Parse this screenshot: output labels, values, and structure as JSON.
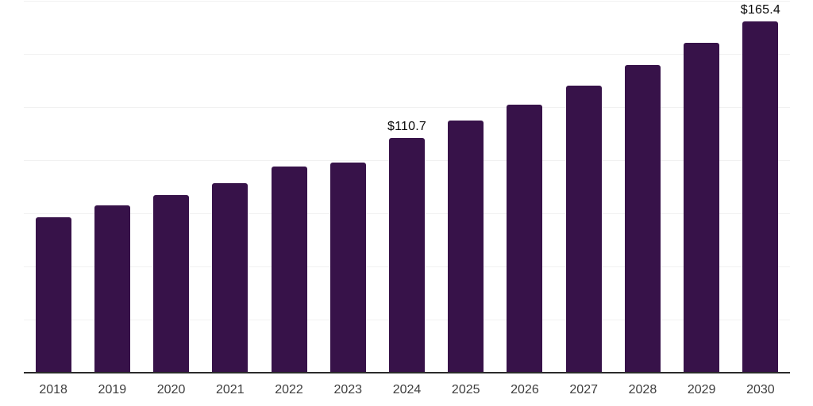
{
  "chart_data": {
    "type": "bar",
    "title": "",
    "xlabel": "",
    "ylabel": "",
    "categories": [
      "2018",
      "2019",
      "2020",
      "2021",
      "2022",
      "2023",
      "2024",
      "2025",
      "2026",
      "2027",
      "2028",
      "2029",
      "2030"
    ],
    "values": [
      73.2,
      78.7,
      83.6,
      89.2,
      97.1,
      99.0,
      110.7,
      118.7,
      126.2,
      135.2,
      144.9,
      155.3,
      165.4
    ],
    "value_labels": [
      {
        "category": "2024",
        "text": "$110.7"
      },
      {
        "category": "2030",
        "text": "$165.4"
      }
    ],
    "ylim": [
      0,
      175
    ],
    "grid_step": 25,
    "grid": true,
    "legend": "none"
  },
  "colors": {
    "background": "#ffffff",
    "bar": "#371249",
    "gridline": "#f1f1f1",
    "axis": "#2b2b2b",
    "tick_label": "#3d3d3d",
    "value_label": "#0a0a0a"
  }
}
